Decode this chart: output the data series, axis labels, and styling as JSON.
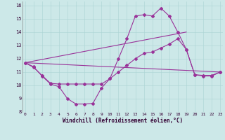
{
  "background_color": "#cce8e8",
  "line_color": "#993399",
  "xlim": [
    -0.3,
    23.3
  ],
  "ylim": [
    8,
    16.3
  ],
  "yticks": [
    8,
    9,
    10,
    11,
    12,
    13,
    14,
    15,
    16
  ],
  "xticks": [
    0,
    1,
    2,
    3,
    4,
    5,
    6,
    7,
    8,
    9,
    10,
    11,
    12,
    13,
    14,
    15,
    16,
    17,
    18,
    19,
    20,
    21,
    22,
    23
  ],
  "xlabel": "Windchill (Refroidissement éolien,°C)",
  "curve1_x": [
    0,
    1,
    2,
    3,
    4,
    5,
    6,
    7,
    8,
    9,
    10,
    11,
    12,
    13,
    14,
    15,
    16,
    17,
    18,
    19,
    20,
    21,
    22,
    23
  ],
  "curve1_y": [
    11.7,
    11.4,
    10.7,
    10.1,
    9.9,
    9.0,
    8.6,
    8.6,
    8.65,
    9.8,
    10.5,
    12.0,
    13.5,
    15.2,
    15.3,
    15.2,
    15.8,
    15.2,
    14.0,
    12.7,
    10.8,
    10.7,
    10.7,
    11.0
  ],
  "curve2_x": [
    0,
    1,
    2,
    3,
    4,
    5,
    6,
    7,
    8,
    9,
    10,
    11,
    12,
    13,
    14,
    15,
    16,
    17,
    18,
    19,
    20,
    21,
    22,
    23
  ],
  "curve2_y": [
    11.7,
    11.35,
    10.75,
    10.15,
    10.1,
    10.1,
    10.1,
    10.1,
    10.1,
    10.1,
    10.5,
    11.0,
    11.5,
    12.0,
    12.4,
    12.5,
    12.8,
    13.1,
    13.5,
    12.7,
    10.8,
    10.75,
    10.75,
    11.0
  ],
  "line3_x": [
    0,
    23
  ],
  "line3_y": [
    11.7,
    11.0
  ],
  "line4_x": [
    0,
    19
  ],
  "line4_y": [
    11.7,
    14.0
  ]
}
